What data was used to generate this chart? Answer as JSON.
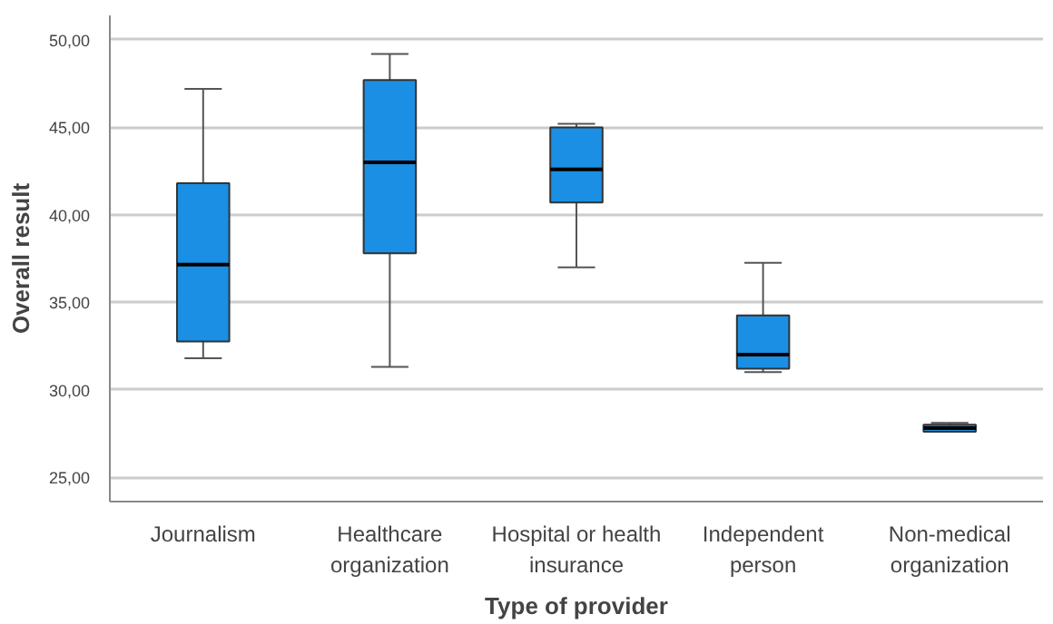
{
  "chart_data": {
    "type": "box",
    "xlabel": "Type of provider",
    "ylabel": "Overall result",
    "categories": [
      "Journalism",
      "Healthcare organization",
      "Hospital or health insurance",
      "Independent person",
      "Non-medical organization"
    ],
    "boxes": [
      {
        "low": 31.8,
        "q1": 32.75,
        "median": 37.15,
        "q3": 41.8,
        "high": 47.2
      },
      {
        "low": 31.3,
        "q1": 37.8,
        "median": 43.0,
        "q3": 47.7,
        "high": 49.2
      },
      {
        "low": 37.0,
        "q1": 40.7,
        "median": 42.6,
        "q3": 45.0,
        "high": 45.2
      },
      {
        "low": 31.0,
        "q1": 31.2,
        "median": 32.0,
        "q3": 34.25,
        "high": 37.25
      },
      {
        "low": 27.6,
        "q1": 27.6,
        "median": 27.8,
        "q3": 28.0,
        "high": 28.1
      }
    ],
    "color": "#1a8fe3",
    "ylim": [
      23.6,
      51.4
    ],
    "yticks": [
      {
        "value": 25,
        "label": "25,00"
      },
      {
        "value": 30,
        "label": "30,00"
      },
      {
        "value": 35,
        "label": "35,00"
      },
      {
        "value": 40,
        "label": "40,00"
      },
      {
        "value": 45,
        "label": "45,00"
      },
      {
        "value": 50,
        "label": "50,00"
      }
    ],
    "grid": "y"
  }
}
